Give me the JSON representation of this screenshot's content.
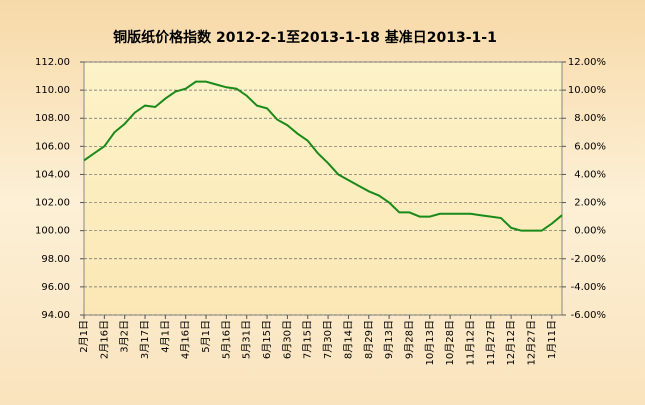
{
  "chart_data": {
    "type": "line",
    "title": "铜版纸价格指数 2012-2-1至2013-1-18 基准日2013-1-1",
    "categories": [
      "2月1日",
      null,
      "2月16日",
      null,
      "3月2日",
      null,
      "3月17日",
      null,
      "4月1日",
      null,
      "4月16日",
      null,
      "5月1日",
      null,
      "5月16日",
      null,
      "5月31日",
      null,
      "6月15日",
      null,
      "6月30日",
      null,
      "7月15日",
      null,
      "7月30日",
      null,
      "8月14日",
      null,
      "8月29日",
      null,
      "9月13日",
      null,
      "9月28日",
      null,
      "10月13日",
      null,
      "10月28日",
      null,
      "11月12日",
      null,
      "11月27日",
      null,
      "12月12日",
      null,
      "12月27日",
      null,
      "1月11日",
      null
    ],
    "series": [
      {
        "color": "#1a8a1a",
        "values": [
          105.0,
          105.5,
          106.0,
          107.0,
          107.6,
          108.4,
          108.9,
          108.8,
          109.4,
          109.9,
          110.1,
          110.6,
          110.6,
          110.4,
          110.2,
          110.1,
          109.6,
          108.9,
          108.7,
          107.9,
          107.5,
          106.9,
          106.4,
          105.5,
          104.8,
          104.0,
          103.6,
          103.2,
          102.8,
          102.5,
          102.0,
          101.3,
          101.3,
          101.0,
          101.0,
          101.2,
          101.2,
          101.2,
          101.2,
          101.1,
          101.0,
          100.9,
          100.2,
          100.0,
          100.0,
          100.0,
          100.5,
          101.1
        ]
      }
    ],
    "ylim": [
      94,
      112
    ],
    "yticks": [
      {
        "value": 94,
        "label": "94.00"
      },
      {
        "value": 96,
        "label": "96.00"
      },
      {
        "value": 98,
        "label": "98.00"
      },
      {
        "value": 100,
        "label": "100.00"
      },
      {
        "value": 102,
        "label": "102.00"
      },
      {
        "value": 104,
        "label": "104.00"
      },
      {
        "value": 106,
        "label": "106.00"
      },
      {
        "value": 108,
        "label": "108.00"
      },
      {
        "value": 110,
        "label": "110.00"
      },
      {
        "value": 112,
        "label": "112.00"
      }
    ],
    "y2lim": [
      -6,
      12
    ],
    "y2ticks": [
      {
        "value": -6,
        "label": "-6.00%"
      },
      {
        "value": -4,
        "label": "-4.00%"
      },
      {
        "value": -2,
        "label": "-2.00%"
      },
      {
        "value": 0,
        "label": "0.00%"
      },
      {
        "value": 2,
        "label": "2.00%"
      },
      {
        "value": 4,
        "label": "4.00%"
      },
      {
        "value": 6,
        "label": "6.00%"
      },
      {
        "value": 8,
        "label": "8.00%"
      },
      {
        "value": 10,
        "label": "10.00%"
      },
      {
        "value": 12,
        "label": "12.00%"
      }
    ],
    "grid": true
  }
}
